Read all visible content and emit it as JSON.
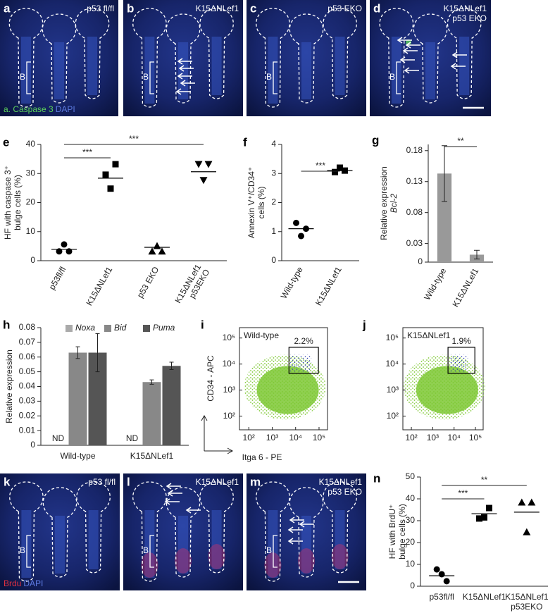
{
  "image_panels": [
    {
      "label": "a",
      "caption": [
        "p53 fl/fl"
      ],
      "bulge": "B",
      "stain": [
        "a. Caspase 3",
        "DAPI"
      ]
    },
    {
      "label": "b",
      "caption": [
        "K15ΔNLef1"
      ],
      "bulge": "B"
    },
    {
      "label": "c",
      "caption": [
        "p53 EKO"
      ],
      "bulge": "B"
    },
    {
      "label": "d",
      "caption": [
        "K15ΔNLef1",
        "p53 EKO"
      ],
      "bulge": "B"
    },
    {
      "label": "k",
      "caption": [
        "p53 fl/fl"
      ],
      "bulge": "B",
      "stain": [
        "Brdu",
        "DAPI"
      ]
    },
    {
      "label": "l",
      "caption": [
        "K15ΔNLef1"
      ],
      "bulge": "B"
    },
    {
      "label": "m",
      "caption": [
        "K15ΔNLef1",
        "p53 EKO"
      ],
      "bulge": "B"
    }
  ],
  "chart_data": [
    {
      "type": "dot",
      "label": "e",
      "ylabel": [
        "HF with caspase 3⁺",
        "bulge cells (%)"
      ],
      "categories": [
        [
          "p53fl/fl"
        ],
        [
          "K15ΔNLef1"
        ],
        [
          "p53 EKO"
        ],
        [
          "K15ΔNLef1",
          "p53EKO"
        ]
      ],
      "markers": [
        "circle",
        "square",
        "triangle-up",
        "triangle-down"
      ],
      "color": "#000",
      "points": [
        [
          5.6,
          3.2,
          3.2
        ],
        [
          24.8,
          29.6,
          33.2
        ],
        [
          5.1,
          3.2,
          3.2
        ],
        [
          27.7,
          33.2,
          33.2
        ]
      ],
      "means": [
        3.9,
        28.4,
        4.6,
        30.6
      ],
      "ylim": [
        0,
        40
      ],
      "yticks": [
        0,
        10,
        20,
        30,
        40
      ],
      "brackets": [
        {
          "text": "***",
          "between": [
            0,
            1
          ]
        },
        {
          "text": "***",
          "between": [
            0,
            3
          ]
        }
      ]
    },
    {
      "type": "dot",
      "label": "f",
      "ylabel": [
        "Annexin V⁺/CD34⁺",
        "cells (%)"
      ],
      "categories": [
        [
          "Wild-type"
        ],
        [
          "K15ΔNLef1"
        ]
      ],
      "markers": [
        "circle",
        "square"
      ],
      "color": "#000",
      "points": [
        [
          0.85,
          1.3,
          1.1
        ],
        [
          3.2,
          3.05,
          3.1
        ]
      ],
      "means": [
        1.1,
        3.1
      ],
      "ylim": [
        0,
        4
      ],
      "yticks": [
        0,
        1,
        2,
        3,
        4
      ],
      "brackets": [
        {
          "text": "***",
          "between": [
            0,
            1
          ]
        }
      ]
    },
    {
      "type": "bar",
      "label": "g",
      "ylabel": [
        "Relative expression",
        "Bcl-2"
      ],
      "categories": [
        [
          "Wild-type"
        ],
        [
          "K15ΔNLef1"
        ]
      ],
      "values": [
        0.143,
        0.012
      ],
      "errors": [
        0.045,
        0.007
      ],
      "color": "#999999",
      "ylim": [
        0,
        0.19
      ],
      "yticks": [
        0,
        0.03,
        0.08,
        0.13,
        0.18
      ],
      "brackets": [
        {
          "text": "**",
          "between": [
            0,
            1
          ]
        }
      ]
    },
    {
      "type": "grouped-bar",
      "label": "h",
      "ylabel": [
        "Relative expression"
      ],
      "categories": [
        "Wild-type",
        "K15ΔNLef1"
      ],
      "series": [
        {
          "name": "Noxa",
          "color": "#aaaaaa",
          "values": [
            null,
            null
          ],
          "value_labels": [
            "ND",
            "ND"
          ]
        },
        {
          "name": "Bid",
          "color": "#888888",
          "values": [
            0.063,
            0.043
          ],
          "errors": [
            0.004,
            0.0015
          ]
        },
        {
          "name": "Puma",
          "color": "#555555",
          "values": [
            0.063,
            0.054
          ],
          "errors": [
            0.013,
            0.0025
          ]
        }
      ],
      "ylim": [
        0,
        0.08
      ],
      "yticks": [
        0,
        0.01,
        0.02,
        0.03,
        0.04,
        0.05,
        0.06,
        0.07,
        0.08
      ]
    },
    {
      "type": "flow",
      "label": "i",
      "sample": "Wild-type",
      "gate_label": "2.2%",
      "xlabel": "Itga 6 - PE",
      "ylabel": "CD34 - APC",
      "log": true,
      "xlim": [
        40,
        230000
      ],
      "ylim": [
        30,
        250000
      ],
      "gate": {
        "x": [
          5200,
          94000
        ],
        "y": [
          4400,
          44000
        ]
      },
      "xticks": [
        {
          "value": 100,
          "label": "10²"
        },
        {
          "value": 1000,
          "label": "10³"
        },
        {
          "value": 10000,
          "label": "10⁴"
        },
        {
          "value": 100000,
          "label": "10⁵"
        }
      ],
      "yticks": [
        {
          "value": 100,
          "label": "10²"
        },
        {
          "value": 1000,
          "label": "10³"
        },
        {
          "value": 10000,
          "label": "10⁴"
        },
        {
          "value": 100000,
          "label": "10⁵"
        }
      ],
      "color": "#7dc832",
      "gate_color": "#2a3fa8"
    },
    {
      "type": "flow",
      "label": "j",
      "sample": "K15ΔNLef1",
      "gate_label": "1.9%",
      "log": true,
      "xlim": [
        40,
        230000
      ],
      "ylim": [
        30,
        250000
      ],
      "gate": {
        "x": [
          5200,
          94000
        ],
        "y": [
          4400,
          44000
        ]
      },
      "xticks": [
        {
          "value": 100,
          "label": "10²"
        },
        {
          "value": 1000,
          "label": "10³"
        },
        {
          "value": 10000,
          "label": "10⁴"
        },
        {
          "value": 100000,
          "label": "10⁵"
        }
      ],
      "yticks": [
        {
          "value": 100,
          "label": "10²"
        },
        {
          "value": 1000,
          "label": "10³"
        },
        {
          "value": 10000,
          "label": "10⁴"
        },
        {
          "value": 100000,
          "label": "10⁵"
        }
      ],
      "color": "#7dc832",
      "gate_color": "#2a3fa8"
    },
    {
      "type": "dot",
      "label": "n",
      "ylabel": [
        "HF with BrdU⁺",
        "bulge cells (%)"
      ],
      "categories": [
        [
          "p53fl/fl"
        ],
        [
          "K15ΔNLef1"
        ],
        [
          "K15ΔNLef1",
          "p53EKO"
        ]
      ],
      "markers": [
        "circle",
        "square",
        "triangle-up"
      ],
      "color": "#000",
      "points": [
        [
          5.5,
          7.7,
          2.3
        ],
        [
          31.5,
          31.0,
          35.8
        ],
        [
          24.8,
          38.4,
          38.4
        ]
      ],
      "means": [
        4.8,
        33.2,
        33.9
      ],
      "ylim": [
        0,
        50
      ],
      "yticks": [
        0,
        10,
        20,
        30,
        40,
        50
      ],
      "brackets": [
        {
          "text": "***",
          "between": [
            0,
            1
          ]
        },
        {
          "text": "**",
          "between": [
            0,
            2
          ]
        }
      ]
    }
  ]
}
